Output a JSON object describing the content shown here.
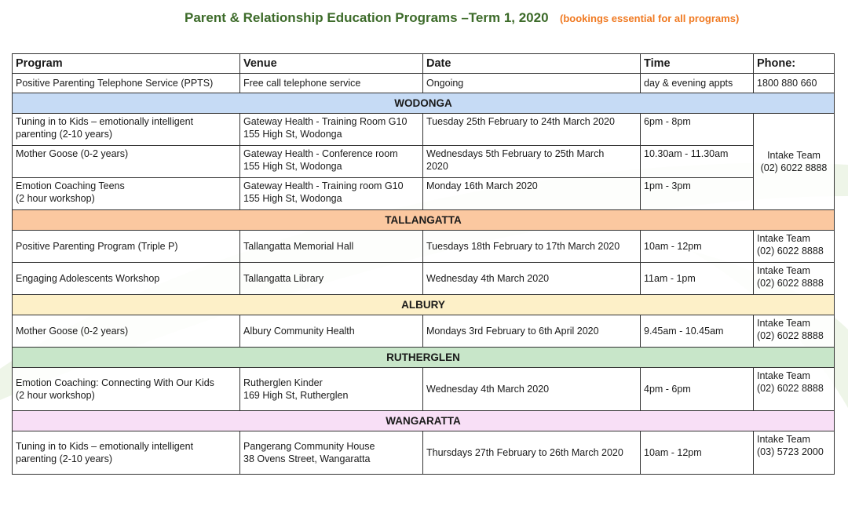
{
  "header": {
    "title": "Parent & Relationship Education Programs –Term 1, 2020",
    "note": "(bookings essential for all programs)"
  },
  "colors": {
    "title": "#3d6b2a",
    "note": "#f07a22"
  },
  "table": {
    "columns": [
      "Program",
      "Venue",
      "Date",
      "Time",
      "Phone:"
    ],
    "general": {
      "program": [
        "Positive Parenting Telephone Service (PPTS)"
      ],
      "venue": [
        "Free call telephone service"
      ],
      "date": [
        "Ongoing"
      ],
      "time": [
        "day & evening appts"
      ],
      "phone": [
        "1800 880 660"
      ]
    },
    "regions": [
      {
        "name": "WODONGA",
        "color": "#c6dbf5",
        "shared_phone": [
          "Intake Team",
          "(02) 6022 8888"
        ],
        "rows": [
          {
            "program": [
              "Tuning in to Kids – emotionally intelligent",
              "parenting (2-10 years)"
            ],
            "venue": [
              "Gateway Health - Training Room G10",
              "155 High St, Wodonga"
            ],
            "date": [
              "Tuesday 25th February to 24th March 2020"
            ],
            "time": [
              "6pm - 8pm"
            ]
          },
          {
            "program": [
              "Mother Goose (0-2 years)"
            ],
            "venue": [
              "Gateway Health - Conference room",
              "155 High St, Wodonga"
            ],
            "date": [
              "Wednesdays 5th February to 25th March",
              "2020"
            ],
            "time": [
              "10.30am - 11.30am"
            ]
          },
          {
            "program": [
              "Emotion Coaching Teens",
              "(2 hour workshop)"
            ],
            "venue": [
              "Gateway Health - Training room G10",
              "155 High St, Wodonga"
            ],
            "date": [
              "Monday 16th March 2020"
            ],
            "time": [
              "1pm - 3pm"
            ]
          }
        ]
      },
      {
        "name": "TALLANGATTA",
        "color": "#fbc8a0",
        "rows": [
          {
            "program": [
              "Positive Parenting Program (Triple P)"
            ],
            "venue": [
              "Tallangatta Memorial Hall"
            ],
            "date": [
              "Tuesdays 18th February to 17th March 2020"
            ],
            "time": [
              "10am - 12pm"
            ],
            "phone": [
              "Intake Team",
              "(02) 6022 8888"
            ]
          },
          {
            "program": [
              "Engaging Adolescents Workshop"
            ],
            "venue": [
              "Tallangatta Library"
            ],
            "date": [
              "Wednesday 4th March 2020"
            ],
            "time": [
              "11am - 1pm"
            ],
            "phone": [
              "Intake Team",
              "(02) 6022 8888"
            ]
          }
        ]
      },
      {
        "name": "ALBURY",
        "color": "#fdf0c8",
        "rows": [
          {
            "program": [
              "Mother Goose (0-2 years)"
            ],
            "venue": [
              "Albury Community Health"
            ],
            "date": [
              "Mondays 3rd February to 6th April 2020"
            ],
            "time": [
              "9.45am - 10.45am"
            ],
            "phone": [
              "Intake Team",
              "(02) 6022 8888"
            ]
          }
        ]
      },
      {
        "name": "RUTHERGLEN",
        "color": "#c8e6c9",
        "rows": [
          {
            "program": [
              "Emotion Coaching: Connecting With Our Kids",
              "(2 hour workshop)"
            ],
            "venue": [
              "Rutherglen Kinder",
              "169 High St, Rutherglen"
            ],
            "date": [
              "Wednesday 4th March 2020"
            ],
            "time": [
              "4pm - 6pm"
            ],
            "phone": [
              "Intake Team",
              "(02) 6022 8888"
            ]
          }
        ]
      },
      {
        "name": "WANGARATTA",
        "color": "#f8dff6",
        "rows": [
          {
            "program": [
              "Tuning in to Kids – emotionally intelligent",
              "parenting (2-10 years)"
            ],
            "venue": [
              "Pangerang Community House",
              "38 Ovens Street, Wangaratta"
            ],
            "date": [
              "Thursdays 27th February to 26th March 2020"
            ],
            "time": [
              "10am - 12pm"
            ],
            "phone": [
              "Intake Team",
              "(03) 5723 2000"
            ]
          }
        ]
      }
    ]
  }
}
